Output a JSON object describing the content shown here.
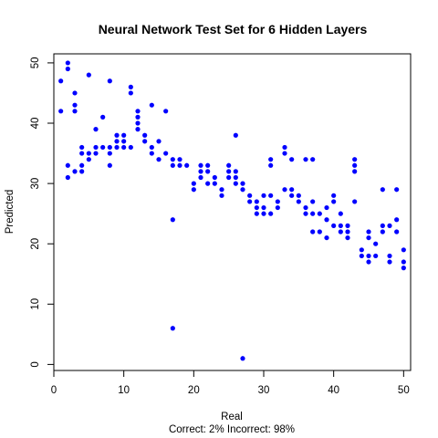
{
  "chart_data": {
    "type": "scatter",
    "title": "Neural Network Test Set for 6 Hidden Layers",
    "xlabel": "Real",
    "ylabel": "Predicted",
    "subtitle": "Correct: 2% Incorrect: 98%",
    "xlim": [
      0,
      51
    ],
    "ylim": [
      -1,
      51.5
    ],
    "xticks": [
      "0",
      "10",
      "20",
      "30",
      "40",
      "50"
    ],
    "yticks": [
      "0",
      "10",
      "20",
      "30",
      "40",
      "50"
    ],
    "grid": false,
    "point_color": "#0000ff",
    "points": [
      [
        1,
        47
      ],
      [
        1,
        42
      ],
      [
        2,
        50
      ],
      [
        2,
        49
      ],
      [
        2,
        33
      ],
      [
        2,
        31
      ],
      [
        3,
        45
      ],
      [
        3,
        43
      ],
      [
        3,
        42
      ],
      [
        3,
        32
      ],
      [
        4,
        36
      ],
      [
        4,
        35
      ],
      [
        4,
        33
      ],
      [
        4,
        32
      ],
      [
        5,
        48
      ],
      [
        5,
        35
      ],
      [
        5,
        34
      ],
      [
        6,
        39
      ],
      [
        6,
        36
      ],
      [
        6,
        35
      ],
      [
        7,
        41
      ],
      [
        7,
        36
      ],
      [
        8,
        47
      ],
      [
        8,
        36
      ],
      [
        8,
        35
      ],
      [
        8,
        33
      ],
      [
        9,
        38
      ],
      [
        9,
        37
      ],
      [
        9,
        36
      ],
      [
        10,
        38
      ],
      [
        10,
        37
      ],
      [
        10,
        36
      ],
      [
        11,
        46
      ],
      [
        11,
        45
      ],
      [
        11,
        36
      ],
      [
        12,
        42
      ],
      [
        12,
        41
      ],
      [
        12,
        40
      ],
      [
        12,
        39
      ],
      [
        13,
        38
      ],
      [
        13,
        37
      ],
      [
        14,
        43
      ],
      [
        14,
        36
      ],
      [
        14,
        35
      ],
      [
        15,
        37
      ],
      [
        15,
        34
      ],
      [
        16,
        42
      ],
      [
        16,
        35
      ],
      [
        17,
        34
      ],
      [
        17,
        33
      ],
      [
        17,
        24
      ],
      [
        17,
        6
      ],
      [
        18,
        34
      ],
      [
        18,
        33
      ],
      [
        19,
        33
      ],
      [
        20,
        30
      ],
      [
        20,
        29
      ],
      [
        21,
        33
      ],
      [
        21,
        32
      ],
      [
        21,
        31
      ],
      [
        22,
        33
      ],
      [
        22,
        32
      ],
      [
        22,
        30
      ],
      [
        23,
        31
      ],
      [
        23,
        30
      ],
      [
        24,
        29
      ],
      [
        24,
        28
      ],
      [
        25,
        33
      ],
      [
        25,
        32
      ],
      [
        25,
        31
      ],
      [
        26,
        38
      ],
      [
        26,
        32
      ],
      [
        26,
        31
      ],
      [
        26,
        30
      ],
      [
        27,
        30
      ],
      [
        27,
        29
      ],
      [
        27,
        1
      ],
      [
        28,
        28
      ],
      [
        28,
        27
      ],
      [
        29,
        27
      ],
      [
        29,
        26
      ],
      [
        29,
        25
      ],
      [
        30,
        28
      ],
      [
        30,
        26
      ],
      [
        30,
        25
      ],
      [
        31,
        34
      ],
      [
        31,
        33
      ],
      [
        31,
        28
      ],
      [
        31,
        25
      ],
      [
        32,
        27
      ],
      [
        32,
        26
      ],
      [
        33,
        36
      ],
      [
        33,
        35
      ],
      [
        33,
        29
      ],
      [
        34,
        34
      ],
      [
        34,
        29
      ],
      [
        34,
        28
      ],
      [
        35,
        28
      ],
      [
        35,
        27
      ],
      [
        36,
        34
      ],
      [
        36,
        26
      ],
      [
        36,
        25
      ],
      [
        37,
        34
      ],
      [
        37,
        27
      ],
      [
        37,
        25
      ],
      [
        37,
        22
      ],
      [
        38,
        25
      ],
      [
        38,
        22
      ],
      [
        39,
        26
      ],
      [
        39,
        24
      ],
      [
        39,
        21
      ],
      [
        40,
        28
      ],
      [
        40,
        27
      ],
      [
        40,
        23
      ],
      [
        41,
        25
      ],
      [
        41,
        23
      ],
      [
        41,
        22
      ],
      [
        42,
        23
      ],
      [
        42,
        22
      ],
      [
        42,
        21
      ],
      [
        43,
        34
      ],
      [
        43,
        33
      ],
      [
        43,
        32
      ],
      [
        43,
        27
      ],
      [
        44,
        19
      ],
      [
        44,
        18
      ],
      [
        45,
        22
      ],
      [
        45,
        21
      ],
      [
        45,
        18
      ],
      [
        45,
        17
      ],
      [
        46,
        20
      ],
      [
        46,
        18
      ],
      [
        47,
        29
      ],
      [
        47,
        23
      ],
      [
        47,
        22
      ],
      [
        48,
        23
      ],
      [
        48,
        18
      ],
      [
        48,
        17
      ],
      [
        49,
        29
      ],
      [
        49,
        24
      ],
      [
        49,
        22
      ],
      [
        50,
        19
      ],
      [
        50,
        17
      ],
      [
        50,
        16
      ]
    ]
  }
}
